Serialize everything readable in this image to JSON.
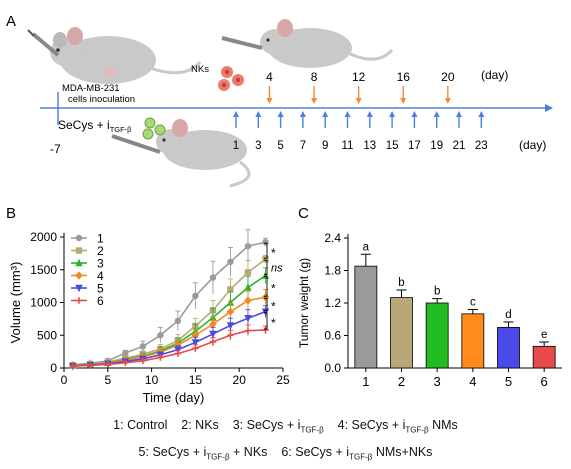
{
  "panel_a": {
    "panel_label": "A",
    "inoculation_label_1": "MDA-MB-231",
    "inoculation_label_2": "cells inoculation",
    "nk_label": "NKs",
    "secys_label": "SeCys + i",
    "secys_sub": "TGF-β",
    "start_day": "-7",
    "timeline_unit": "(day)",
    "bottom_days": [
      "1",
      "3",
      "5",
      "7",
      "9",
      "11",
      "13",
      "15",
      "17",
      "19",
      "21",
      "23"
    ],
    "nk_days": [
      "4",
      "8",
      "12",
      "16",
      "20"
    ],
    "nk_unit": "(day)",
    "colors": {
      "timeline": "#4f7fe0",
      "nk_arrow": "#f28a3c",
      "mouse": "#c9c9c9"
    }
  },
  "panel_b_label": "B",
  "panel_c_label": "C",
  "legend": {
    "line1": [
      "1: Control",
      "2: NKs",
      "3: SeCys + i",
      "TGF-β",
      "4: SeCys + i",
      "TGF-β",
      " NMs"
    ],
    "line2": [
      "5: SeCys + i",
      "TGF-β",
      " + NKs",
      "6: SeCys + i",
      "TGF-β",
      " NMs+NKs"
    ]
  },
  "chart_data": [
    {
      "type": "line",
      "xlabel": "Time (day)",
      "ylabel": "Volume (mm³)",
      "xlim": [
        0,
        25
      ],
      "ylim": [
        0,
        2000
      ],
      "xticks": [
        "0",
        "5",
        "10",
        "15",
        "20",
        "25"
      ],
      "yticks": [
        "0",
        "500",
        "1000",
        "1500",
        "2000"
      ],
      "x": [
        1,
        3,
        5,
        7,
        9,
        11,
        13,
        15,
        17,
        19,
        21,
        23
      ],
      "series": [
        {
          "name": "1",
          "color": "#9a9a9a",
          "marker": "circle",
          "values": [
            50,
            70,
            110,
            230,
            330,
            500,
            720,
            1100,
            1380,
            1620,
            1860,
            1920
          ],
          "errors": [
            20,
            20,
            30,
            40,
            80,
            120,
            150,
            200,
            250,
            220,
            250,
            60
          ]
        },
        {
          "name": "2",
          "color": "#b8a878",
          "marker": "square",
          "values": [
            40,
            60,
            90,
            150,
            210,
            290,
            420,
            640,
            880,
            1200,
            1460,
            1660
          ],
          "errors": [
            15,
            20,
            25,
            35,
            50,
            70,
            90,
            120,
            150,
            160,
            180,
            60
          ]
        },
        {
          "name": "3",
          "color": "#2db32d",
          "marker": "triangle",
          "values": [
            40,
            55,
            80,
            130,
            180,
            260,
            380,
            560,
            770,
            1000,
            1230,
            1410
          ],
          "errors": [
            15,
            20,
            25,
            30,
            45,
            60,
            80,
            110,
            140,
            160,
            170,
            120
          ]
        },
        {
          "name": "4",
          "color": "#f28a1e",
          "marker": "diamond",
          "values": [
            35,
            50,
            75,
            120,
            170,
            240,
            350,
            500,
            670,
            860,
            1030,
            1080
          ],
          "errors": [
            15,
            15,
            20,
            30,
            40,
            55,
            70,
            90,
            120,
            130,
            140,
            120
          ]
        },
        {
          "name": "5",
          "color": "#4a4ae0",
          "marker": "tri-down",
          "values": [
            30,
            45,
            65,
            100,
            140,
            200,
            280,
            390,
            520,
            650,
            760,
            860
          ],
          "errors": [
            10,
            15,
            20,
            25,
            35,
            45,
            60,
            80,
            100,
            110,
            130,
            90
          ]
        },
        {
          "name": "6",
          "color": "#e84a4a",
          "marker": "plus",
          "values": [
            30,
            40,
            55,
            80,
            110,
            160,
            220,
            300,
            400,
            500,
            570,
            580
          ],
          "errors": [
            10,
            15,
            15,
            20,
            30,
            35,
            45,
            55,
            65,
            75,
            85,
            60
          ]
        }
      ],
      "significance": [
        "*",
        "ns",
        "*",
        "*",
        "*"
      ]
    },
    {
      "type": "bar",
      "ylabel": "Tumor weight (g)",
      "ylim": [
        0,
        2.4
      ],
      "yticks": [
        "0.0",
        "0.6",
        "1.2",
        "1.8",
        "2.4"
      ],
      "categories": [
        "1",
        "2",
        "3",
        "4",
        "5",
        "6"
      ],
      "values": [
        1.88,
        1.3,
        1.2,
        1.0,
        0.75,
        0.4
      ],
      "errors": [
        0.22,
        0.14,
        0.08,
        0.08,
        0.1,
        0.08
      ],
      "letters": [
        "a",
        "b",
        "b",
        "c",
        "d",
        "e"
      ],
      "colors": [
        "#9a9a9a",
        "#b8a878",
        "#22bb22",
        "#ff8c1a",
        "#4a4ae8",
        "#e84a4a"
      ]
    }
  ]
}
